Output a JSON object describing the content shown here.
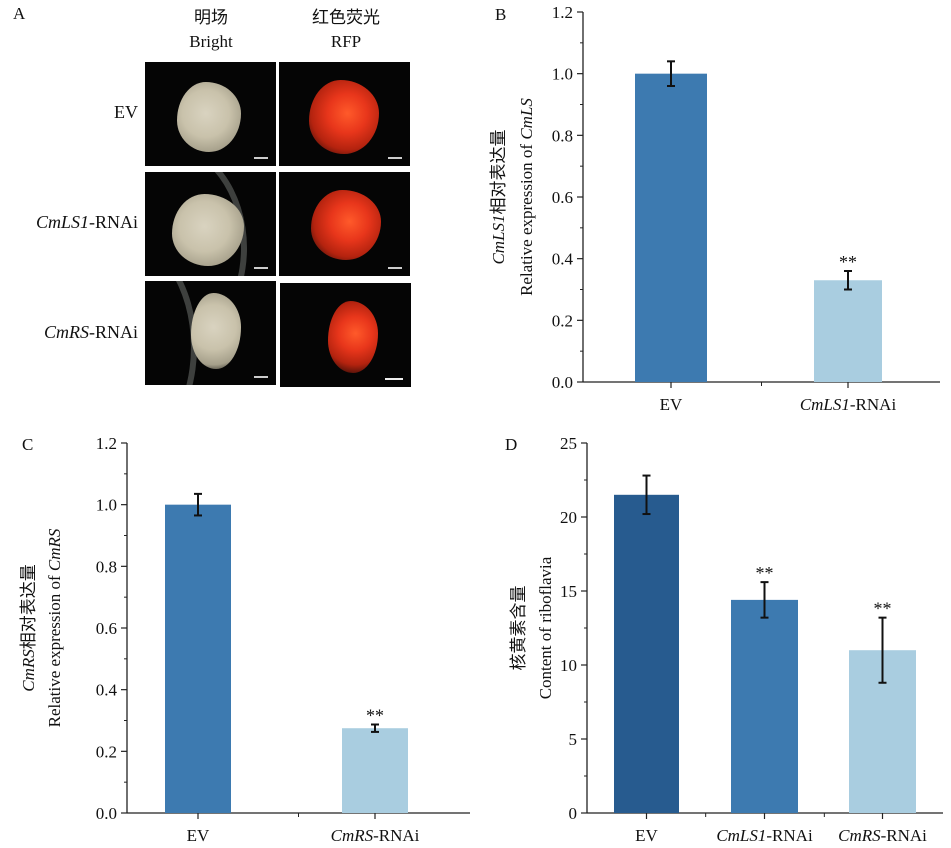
{
  "panel_a": {
    "label": "A",
    "columns": [
      {
        "zh": "明场",
        "en": "Bright"
      },
      {
        "zh": "红色荧光",
        "en": "RFP"
      }
    ],
    "rows": [
      {
        "italic": "",
        "rest": "EV"
      },
      {
        "italic": "CmLS1",
        "rest": "-RNAi"
      },
      {
        "italic": "CmRS",
        "rest": "-RNAi"
      }
    ]
  },
  "chart_data": [
    {
      "panel": "B",
      "type": "bar",
      "categories": [
        "EV",
        "CmLS1-RNAi"
      ],
      "values": [
        1.0,
        0.33
      ],
      "errors": [
        0.04,
        0.03
      ],
      "annotations": [
        "",
        "**"
      ],
      "colors": [
        "#3d7ab0",
        "#a9cde0"
      ],
      "ylim": [
        0,
        1.2
      ],
      "yticks": [
        "0.0",
        "0.2",
        "0.4",
        "0.6",
        "0.8",
        "1.0",
        "1.2"
      ],
      "ylabel_lines": [
        [
          {
            "text": "CmLS1",
            "italic": true
          },
          {
            "text": "相对表达量",
            "italic": false
          }
        ],
        [
          {
            "text": "Relative expression of ",
            "italic": false
          },
          {
            "text": "CmLS",
            "italic": true
          }
        ]
      ]
    },
    {
      "panel": "C",
      "type": "bar",
      "categories": [
        "EV",
        "CmRS-RNAi"
      ],
      "values": [
        1.0,
        0.275
      ],
      "errors": [
        0.035,
        0.012
      ],
      "annotations": [
        "",
        "**"
      ],
      "colors": [
        "#3d7ab0",
        "#a9cde0"
      ],
      "ylim": [
        0,
        1.2
      ],
      "yticks": [
        "0.0",
        "0.2",
        "0.4",
        "0.6",
        "0.8",
        "1.0",
        "1.2"
      ],
      "ylabel_lines": [
        [
          {
            "text": "CmRS",
            "italic": true
          },
          {
            "text": "相对表达量",
            "italic": false
          }
        ],
        [
          {
            "text": "Relative expression of ",
            "italic": false
          },
          {
            "text": "CmRS",
            "italic": true
          }
        ]
      ]
    },
    {
      "panel": "D",
      "type": "bar",
      "categories": [
        "EV",
        "CmLS1-RNAi",
        "CmRS-RNAi"
      ],
      "values": [
        21.5,
        14.4,
        11.0
      ],
      "errors": [
        1.3,
        1.2,
        2.2
      ],
      "annotations": [
        "",
        "**",
        "**"
      ],
      "colors": [
        "#275b8f",
        "#3d7ab0",
        "#a9cde0"
      ],
      "ylim": [
        0,
        25
      ],
      "yticks": [
        "0",
        "5",
        "10",
        "15",
        "20",
        "25"
      ],
      "ylabel_lines": [
        [
          {
            "text": "核黄素含量",
            "italic": false
          }
        ],
        [
          {
            "text": "Content of riboflavia",
            "italic": false
          }
        ]
      ]
    }
  ]
}
